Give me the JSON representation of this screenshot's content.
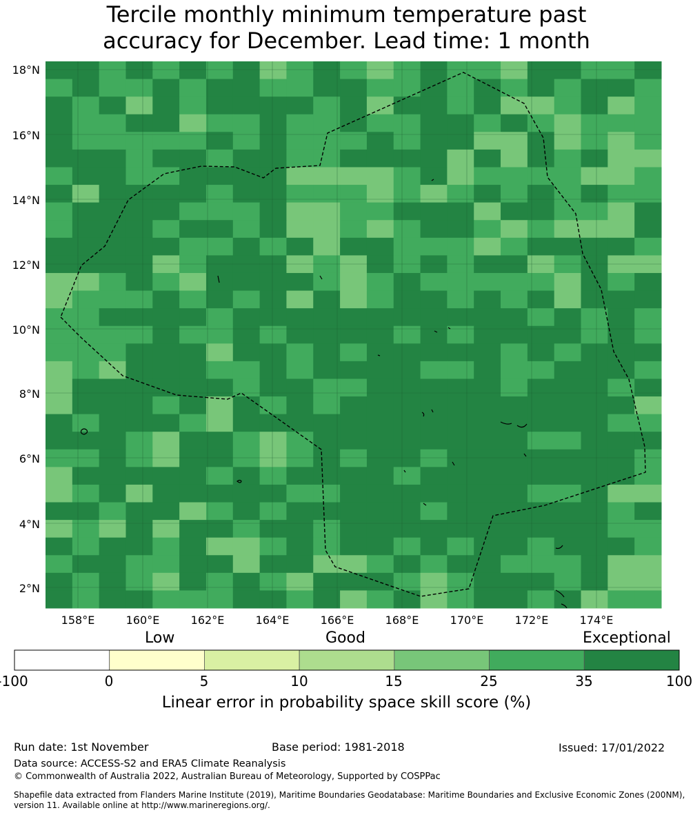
{
  "title_line1": "Tercile monthly minimum temperature past",
  "title_line2": "accuracy for December. Lead time: 1 month",
  "map": {
    "lat_labels": [
      "18°N",
      "16°N",
      "14°N",
      "12°N",
      "10°N",
      "8°N",
      "6°N",
      "4°N",
      "2°N"
    ],
    "lon_labels": [
      "158°E",
      "160°E",
      "162°E",
      "164°E",
      "166°E",
      "168°E",
      "170°E",
      "172°E",
      "174°E"
    ]
  },
  "legend": {
    "categories": {
      "low": "Low",
      "good": "Good",
      "exceptional": "Exceptional"
    },
    "ticks": [
      "-100",
      "0",
      "5",
      "10",
      "15",
      "25",
      "35",
      "100"
    ],
    "colors": [
      "#ffffff",
      "#ffffcc",
      "#d9f0a3",
      "#addd8e",
      "#78c679",
      "#41ab5d",
      "#238443"
    ],
    "title": "Linear error in probability space skill score (%)"
  },
  "footer": {
    "run_date": "Run date: 1st November",
    "base_period": "Base period: 1981-2018",
    "issued": "Issued: 17/01/2022",
    "data_source": "Data source: ACCESS-S2 and ERA5 Climate Reanalysis",
    "copyright": "© Commonwealth of Australia 2022, Australian Bureau of Meteorology, Supported by COSPPac",
    "shapefile_line1": "Shapefile data extracted from Flanders Marine Institute (2019), Maritime Boundaries Geodatabase: Maritime Boundaries and Exclusive Economic Zones (200NM),",
    "shapefile_line2": "version 11. Available online at http://www.marineregions.org/."
  }
}
